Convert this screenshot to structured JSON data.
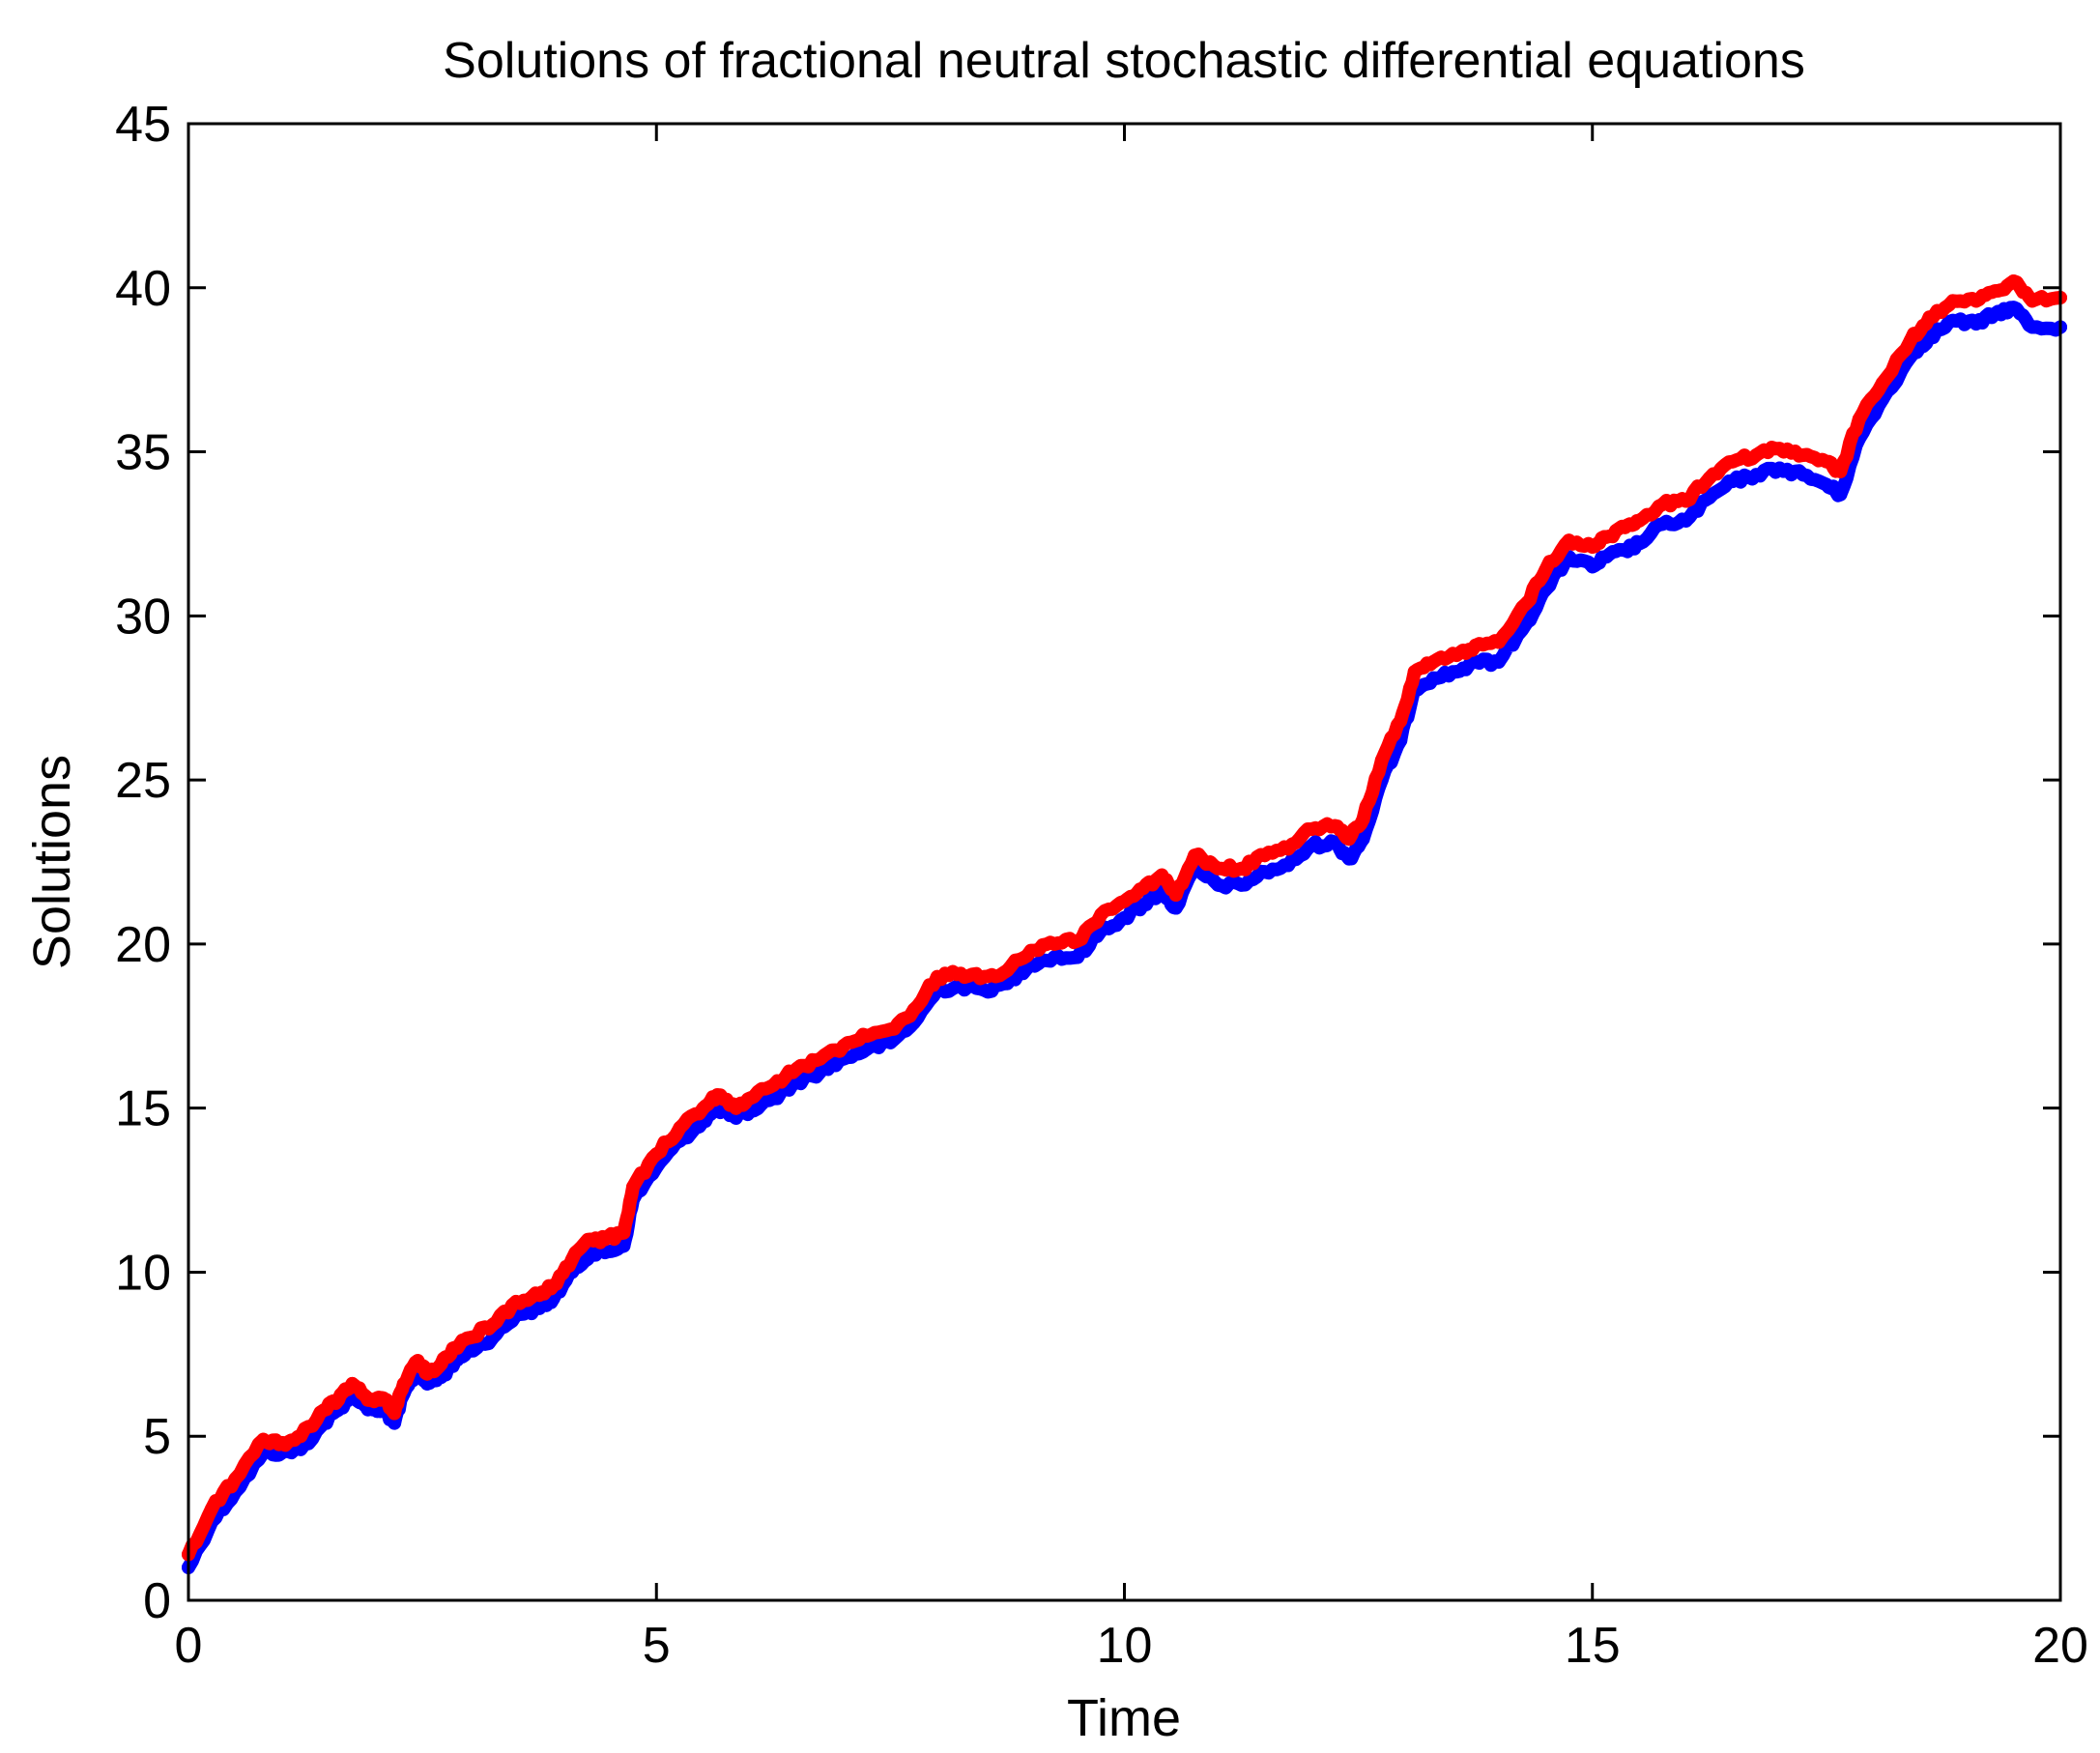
{
  "chart_data": {
    "type": "line",
    "title": "Solutions of fractional neutral stochastic differential equations",
    "xlabel": "Time",
    "ylabel": "Solutions",
    "xlim": [
      0,
      20
    ],
    "ylim": [
      0,
      45
    ],
    "xticks": [
      "0",
      "5",
      "10",
      "15",
      "20"
    ],
    "yticks": [
      "0",
      "5",
      "10",
      "15",
      "20",
      "25",
      "30",
      "35",
      "40",
      "45"
    ],
    "grid": false,
    "legend": "none",
    "x": [
      0,
      0.25,
      0.5,
      0.8,
      1.0,
      1.2,
      1.45,
      1.6,
      1.75,
      1.9,
      2.0,
      2.1,
      2.2,
      2.3,
      2.45,
      2.55,
      2.7,
      2.85,
      3.0,
      3.25,
      3.5,
      3.75,
      3.9,
      4.1,
      4.3,
      4.45,
      4.65,
      4.75,
      5.0,
      5.25,
      5.5,
      5.65,
      5.85,
      6.0,
      6.25,
      6.5,
      6.75,
      7.0,
      7.25,
      7.5,
      7.75,
      8.0,
      8.25,
      8.5,
      8.75,
      9.0,
      9.25,
      9.5,
      9.75,
      10.0,
      10.2,
      10.4,
      10.55,
      10.75,
      11.0,
      11.25,
      11.5,
      11.75,
      12.0,
      12.25,
      12.4,
      12.55,
      12.75,
      12.95,
      13.1,
      13.3,
      13.55,
      13.75,
      14.0,
      14.3,
      14.5,
      14.75,
      15.0,
      15.15,
      15.35,
      15.5,
      15.75,
      16.0,
      16.25,
      16.5,
      16.75,
      17.0,
      17.25,
      17.5,
      17.65,
      17.85,
      18.1,
      18.4,
      18.6,
      18.85,
      19.1,
      19.3,
      19.5,
      19.7,
      20.0
    ],
    "series": [
      {
        "color": "#0000ff",
        "values": [
          1.0,
          2.4,
          3.3,
          4.5,
          4.5,
          4.6,
          5.4,
          5.8,
          6.3,
          5.9,
          5.8,
          5.8,
          5.4,
          6.3,
          7.0,
          6.6,
          6.8,
          7.3,
          7.6,
          8.0,
          8.7,
          8.9,
          9.2,
          10.0,
          10.6,
          10.6,
          10.8,
          12.2,
          13.2,
          14.0,
          14.6,
          15.0,
          14.7,
          14.9,
          15.3,
          15.8,
          16.1,
          16.5,
          16.8,
          17.0,
          17.6,
          18.6,
          18.7,
          18.6,
          18.8,
          19.4,
          19.6,
          19.6,
          20.4,
          20.8,
          21.2,
          21.6,
          21.1,
          22.3,
          21.8,
          21.8,
          22.2,
          22.4,
          23.0,
          23.1,
          22.6,
          23.2,
          25.0,
          26.2,
          27.8,
          28.1,
          28.3,
          28.6,
          28.6,
          29.8,
          30.8,
          31.8,
          31.5,
          31.8,
          32.0,
          32.2,
          32.8,
          32.9,
          33.6,
          34.1,
          34.3,
          34.5,
          34.3,
          34.0,
          33.7,
          35.4,
          36.6,
          37.9,
          38.5,
          39.0,
          38.9,
          39.2,
          39.4,
          38.8,
          38.8
        ]
      },
      {
        "color": "#ff0000",
        "values": [
          1.4,
          2.8,
          3.7,
          4.9,
          4.8,
          5.0,
          5.8,
          6.1,
          6.6,
          6.2,
          6.1,
          6.1,
          5.7,
          6.6,
          7.3,
          6.9,
          7.2,
          7.7,
          8.0,
          8.4,
          9.1,
          9.3,
          9.6,
          10.4,
          11.0,
          11.0,
          11.2,
          12.6,
          13.6,
          14.4,
          15.0,
          15.4,
          15.0,
          15.3,
          15.7,
          16.2,
          16.5,
          16.9,
          17.2,
          17.4,
          18.0,
          19.0,
          19.1,
          19.0,
          19.2,
          19.8,
          20.0,
          20.1,
          20.9,
          21.3,
          21.7,
          22.1,
          21.5,
          22.7,
          22.3,
          22.3,
          22.7,
          22.9,
          23.5,
          23.6,
          23.2,
          23.8,
          25.6,
          26.8,
          28.3,
          28.6,
          28.8,
          29.1,
          29.2,
          30.4,
          31.4,
          32.3,
          32.1,
          32.4,
          32.7,
          32.9,
          33.4,
          33.5,
          34.2,
          34.7,
          34.9,
          35.1,
          34.9,
          34.7,
          34.4,
          36.0,
          37.1,
          38.4,
          39.1,
          39.6,
          39.6,
          39.9,
          40.2,
          39.6,
          39.7
        ]
      }
    ]
  }
}
